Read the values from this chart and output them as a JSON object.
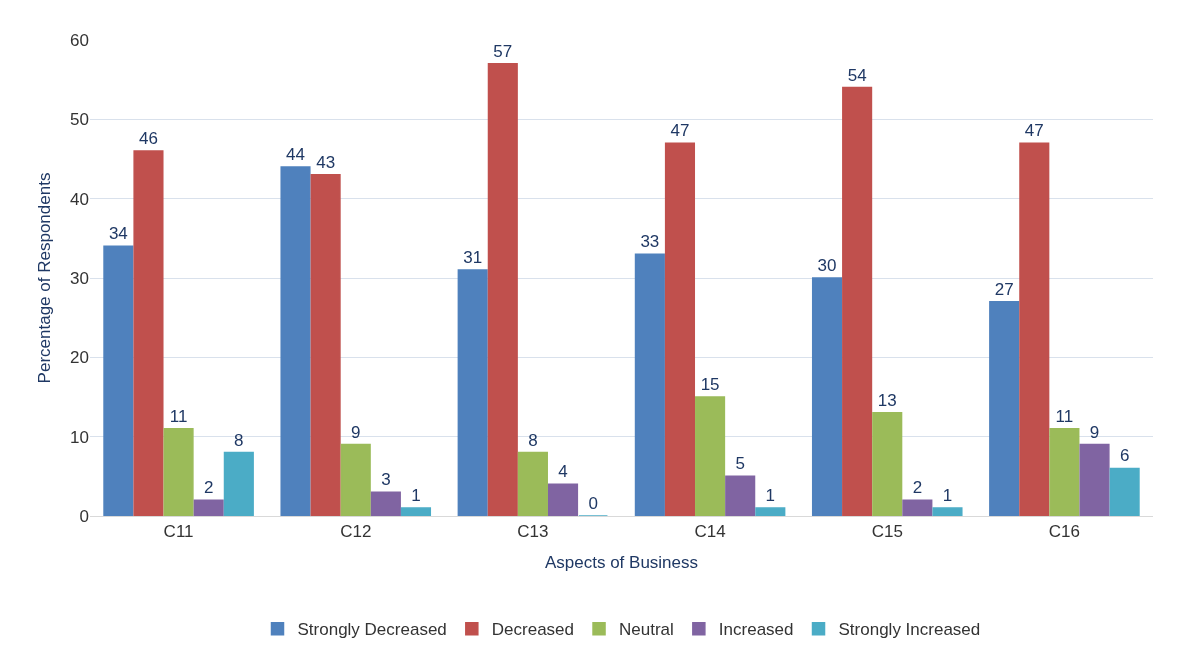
{
  "chart_data": {
    "type": "bar",
    "xlabel": "Aspects of Business",
    "ylabel": "Percentage of Respondents",
    "categories": [
      "C11",
      "C12",
      "C13",
      "C14",
      "C15",
      "C16"
    ],
    "series": [
      {
        "name": "Strongly Decreased",
        "color": "#4f81bd",
        "values": [
          34,
          44,
          31,
          33,
          30,
          27
        ]
      },
      {
        "name": "Decreased",
        "color": "#c0504d",
        "values": [
          46,
          43,
          57,
          47,
          54,
          47
        ]
      },
      {
        "name": "Neutral",
        "color": "#9bbb59",
        "values": [
          11,
          9,
          8,
          15,
          13,
          11
        ]
      },
      {
        "name": "Increased",
        "color": "#8064a2",
        "values": [
          2,
          3,
          4,
          5,
          2,
          9
        ]
      },
      {
        "name": "Strongly Increased",
        "color": "#4bacc6",
        "values": [
          8,
          1,
          0,
          1,
          1,
          6
        ]
      }
    ],
    "ylim": [
      0,
      60
    ],
    "yticks": [
      0,
      10,
      20,
      30,
      40,
      50,
      60
    ],
    "grid": "y",
    "legend": "bottom",
    "data_labels": true
  }
}
